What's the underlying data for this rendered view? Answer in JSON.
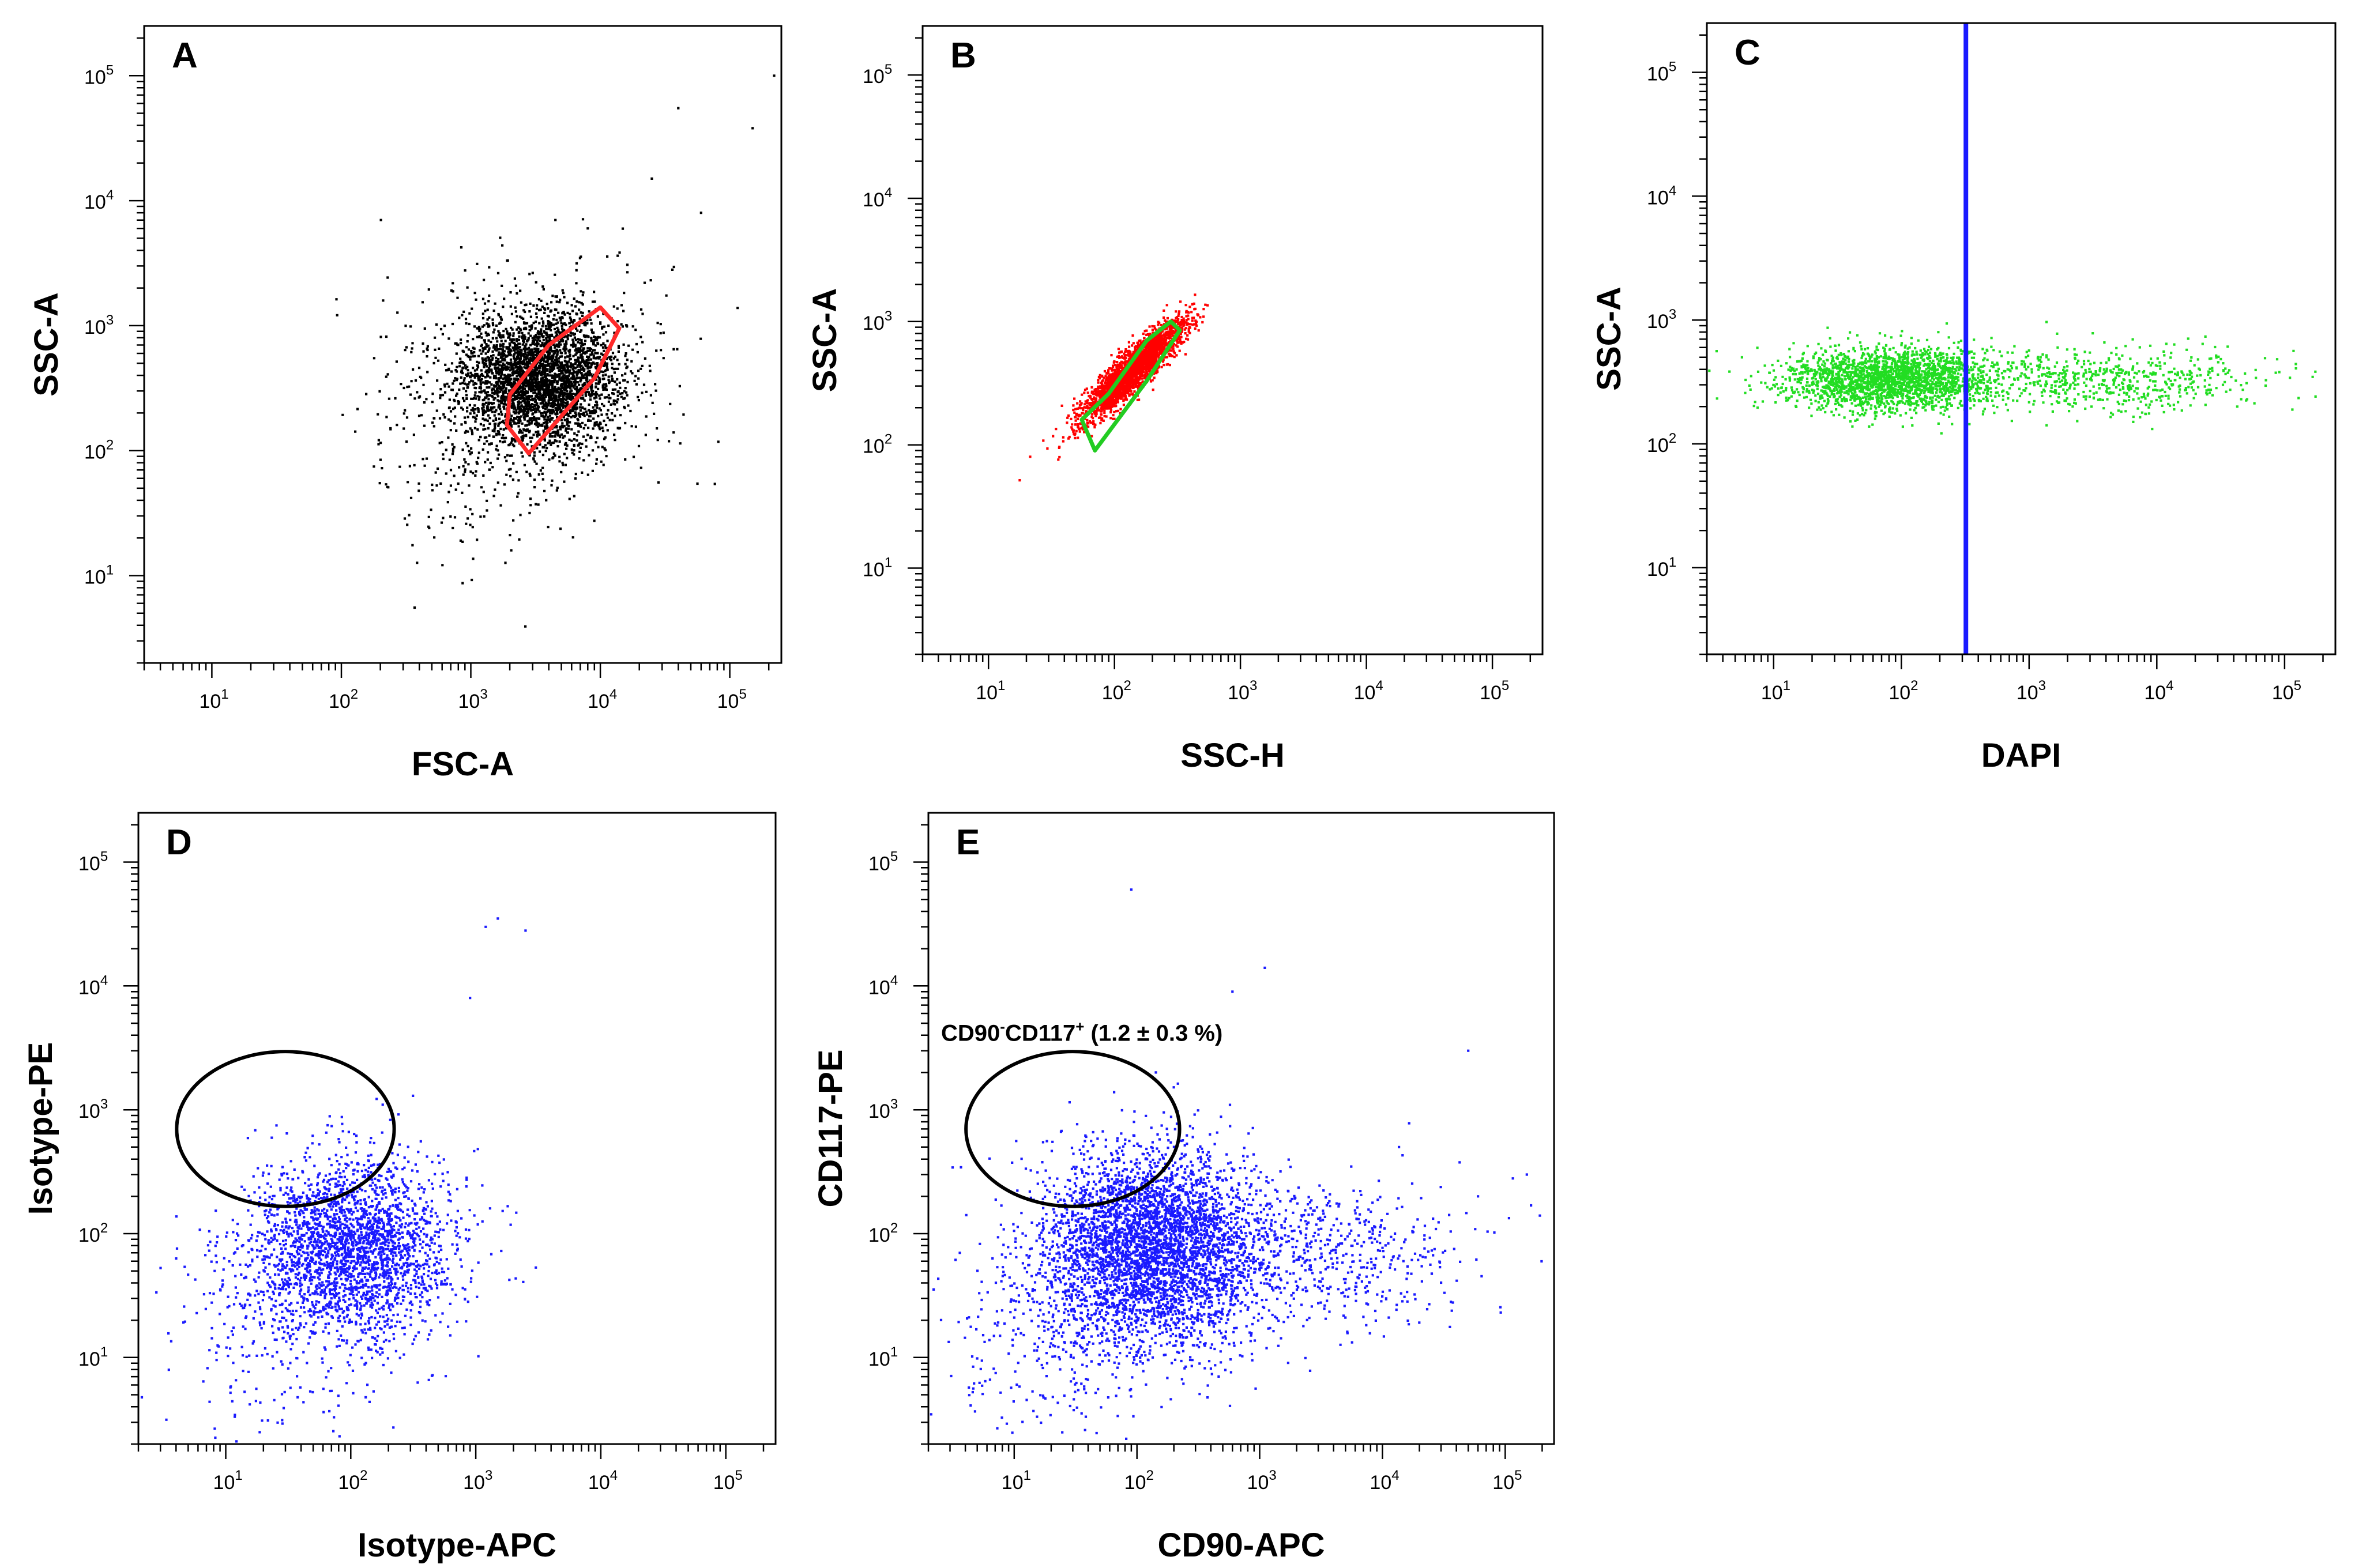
{
  "figure": {
    "background": "#ffffff",
    "tick_exponents": [
      "1",
      "2",
      "3",
      "4",
      "5"
    ]
  },
  "chart_data": [
    {
      "type": "scatter",
      "panel": "A",
      "xlabel": "FSC-A",
      "ylabel": "SSC-A",
      "xscale": "log",
      "yscale": "log",
      "xlim": [
        3,
        250000
      ],
      "ylim": [
        2,
        250000
      ],
      "point_color": "#000000",
      "points": [
        {
          "x": 3500,
          "y": 380,
          "sx": 2.0,
          "sy": 1.8,
          "n": 3000
        },
        {
          "x": 2500,
          "y": 280,
          "sx": 3.5,
          "sy": 3.0,
          "n": 650
        },
        {
          "x": 800,
          "y": 60,
          "sx": 2.5,
          "sy": 3.0,
          "n": 90
        }
      ],
      "outliers": [
        [
          220000,
          100000
        ],
        [
          150000,
          38000
        ],
        [
          40000,
          55000
        ],
        [
          60000,
          8000
        ],
        [
          25000,
          15000
        ],
        [
          8000,
          6000
        ],
        [
          4500,
          7000
        ],
        [
          1500,
          250000
        ],
        [
          36000,
          2800
        ],
        [
          22000,
          2200
        ]
      ],
      "gates": [
        {
          "shape": "polygon",
          "color": "#ff2a2a",
          "vertices": [
            [
              1900,
              160
            ],
            [
              2000,
              280
            ],
            [
              4000,
              700
            ],
            [
              10000,
              1400
            ],
            [
              14000,
              950
            ],
            [
              9000,
              380
            ],
            [
              2800,
              95
            ]
          ]
        }
      ]
    },
    {
      "type": "scatter",
      "panel": "B",
      "xlabel": "SSC-H",
      "ylabel": "SSC-A",
      "xscale": "log",
      "yscale": "log",
      "xlim": [
        3,
        250000
      ],
      "ylim": [
        2,
        250000
      ],
      "point_color": "#ff0000",
      "points": [
        {
          "x": 140,
          "y": 400,
          "sx": 1.6,
          "sy": 1.6,
          "n": 2600,
          "corr": 0.9
        }
      ],
      "gates": [
        {
          "shape": "polygon",
          "color": "#22cc22",
          "vertices": [
            [
              55,
              160
            ],
            [
              70,
              90
            ],
            [
              180,
              330
            ],
            [
              330,
              850
            ],
            [
              280,
              1000
            ],
            [
              180,
              700
            ],
            [
              90,
              260
            ]
          ]
        }
      ]
    },
    {
      "type": "scatter",
      "panel": "C",
      "xlabel": "DAPI",
      "ylabel": "SSC-A",
      "xscale": "log",
      "yscale": "log",
      "xlim": [
        3,
        250000
      ],
      "ylim": [
        2,
        250000
      ],
      "point_color": "#22dd22",
      "points": [
        {
          "x": 80,
          "y": 330,
          "sx": 2.6,
          "sy": 1.35,
          "n": 2200
        },
        {
          "x": 4000,
          "y": 330,
          "sx": 4.5,
          "sy": 1.35,
          "n": 650
        }
      ],
      "gates": [
        {
          "shape": "vline",
          "color": "#1a1aff",
          "x": 320
        }
      ]
    },
    {
      "type": "scatter",
      "panel": "D",
      "xlabel": "Isotype-APC",
      "ylabel": "Isotype-PE",
      "xscale": "log",
      "yscale": "log",
      "xlim": [
        2,
        250000
      ],
      "ylim": [
        2,
        250000
      ],
      "point_color": "#1a1aff",
      "points": [
        {
          "x": 100,
          "y": 75,
          "sx": 2.6,
          "sy": 2.3,
          "n": 2600
        },
        {
          "x": 25,
          "y": 20,
          "sx": 3.0,
          "sy": 3.0,
          "n": 250
        }
      ],
      "outliers": [
        [
          1500,
          35000
        ],
        [
          1200,
          30000
        ],
        [
          2500,
          28000
        ],
        [
          900,
          8000
        ],
        [
          180,
          1100
        ]
      ],
      "gates": [
        {
          "shape": "ellipse",
          "color": "#000000",
          "cx": 30,
          "cy": 700,
          "rx_decades": 0.87,
          "ry_decades": 0.625
        }
      ]
    },
    {
      "type": "scatter",
      "panel": "E",
      "xlabel": "CD90-APC",
      "ylabel": "CD117-PE",
      "xscale": "log",
      "yscale": "log",
      "xlim": [
        2,
        250000
      ],
      "ylim": [
        2,
        250000
      ],
      "point_color": "#1a1aff",
      "points": [
        {
          "x": 130,
          "y": 75,
          "sx": 2.8,
          "sy": 2.5,
          "n": 4200
        },
        {
          "x": 3000,
          "y": 70,
          "sx": 4.0,
          "sy": 2.0,
          "n": 600
        },
        {
          "x": 20,
          "y": 15,
          "sx": 3.0,
          "sy": 3.0,
          "n": 300
        }
      ],
      "outliers": [
        [
          90,
          60000
        ],
        [
          1100,
          14000
        ],
        [
          600,
          9000
        ],
        [
          50000,
          3000
        ],
        [
          150000,
          300
        ],
        [
          60000,
          200
        ]
      ],
      "gates": [
        {
          "shape": "ellipse",
          "color": "#000000",
          "cx": 30,
          "cy": 700,
          "rx_decades": 0.87,
          "ry_decades": 0.625
        }
      ],
      "annotation": {
        "prefix": "CD90",
        "sup1": "-",
        "middle": "CD117",
        "sup2": "+",
        "suffix": " (1.2 ± 0.3 %)"
      }
    }
  ]
}
